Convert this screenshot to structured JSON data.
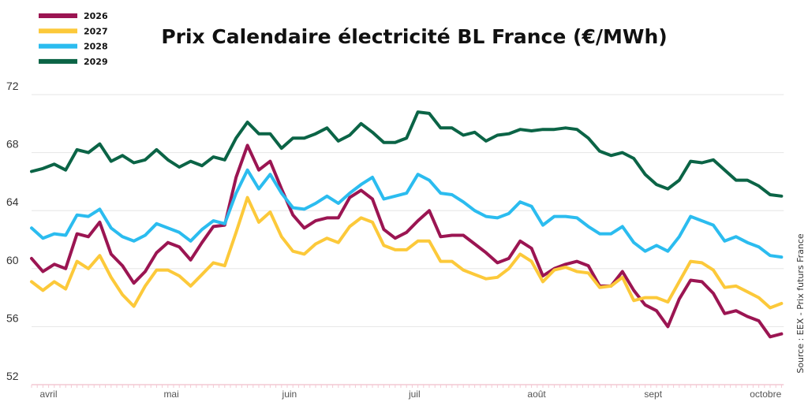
{
  "chart_data": {
    "type": "line",
    "title": "Prix Calendaire électricité BL France (€/MWh)",
    "source": "Source : EEX - Prix futurs France",
    "xlabel": "",
    "ylabel": "",
    "x_unit": "trading day index",
    "xlim": [
      0,
      132.4
    ],
    "ylim": [
      52,
      72
    ],
    "yticks": [
      52,
      56,
      60,
      64,
      68,
      72
    ],
    "grid": true,
    "legend_position": "top-left",
    "x_tick_labels": [
      {
        "label": "avril",
        "x": 1.6
      },
      {
        "label": "mai",
        "x": 24.6
      },
      {
        "label": "juin",
        "x": 45.4
      },
      {
        "label": "juil",
        "x": 67.4
      },
      {
        "label": "août",
        "x": 88.9
      },
      {
        "label": "sept",
        "x": 109.4
      },
      {
        "label": "octobre",
        "x": 129.2
      }
    ],
    "x_step": 2,
    "series": [
      {
        "name": "2026",
        "color": "#9b1552",
        "values": [
          60.7,
          59.8,
          60.3,
          60.0,
          62.4,
          62.2,
          63.2,
          61.0,
          60.2,
          59.0,
          59.8,
          61.1,
          61.8,
          61.5,
          60.6,
          61.8,
          62.9,
          63.0,
          66.3,
          68.5,
          66.8,
          67.4,
          65.5,
          63.7,
          62.8,
          63.3,
          63.5,
          63.5,
          64.9,
          65.4,
          64.8,
          62.7,
          62.1,
          62.5,
          63.3,
          64.0,
          62.2,
          62.3,
          62.3,
          61.7,
          61.1,
          60.4,
          60.7,
          61.9,
          61.4,
          59.5,
          60.0,
          60.3,
          60.5,
          60.2,
          58.8,
          58.8,
          59.8,
          58.5,
          57.5,
          57.1,
          56.0,
          57.9,
          59.2,
          59.1,
          58.3,
          56.9,
          57.1,
          56.7,
          56.4,
          55.3,
          55.5
        ]
      },
      {
        "name": "2027",
        "color": "#fcc93a",
        "values": [
          59.1,
          58.5,
          59.1,
          58.6,
          60.5,
          60.0,
          60.9,
          59.4,
          58.2,
          57.4,
          58.8,
          59.9,
          59.9,
          59.5,
          58.8,
          59.6,
          60.4,
          60.2,
          62.5,
          64.9,
          63.2,
          63.9,
          62.2,
          61.2,
          61.0,
          61.7,
          62.1,
          61.8,
          62.9,
          63.5,
          63.2,
          61.6,
          61.3,
          61.3,
          61.9,
          61.9,
          60.5,
          60.5,
          59.9,
          59.6,
          59.3,
          59.4,
          60.0,
          61.0,
          60.5,
          59.1,
          59.9,
          60.1,
          59.8,
          59.7,
          58.7,
          58.8,
          59.4,
          57.8,
          58.0,
          58.0,
          57.7,
          59.1,
          60.5,
          60.4,
          59.9,
          58.7,
          58.8,
          58.4,
          58.0,
          57.3,
          57.6
        ]
      },
      {
        "name": "2028",
        "color": "#2bbcef",
        "values": [
          62.8,
          62.1,
          62.4,
          62.3,
          63.7,
          63.6,
          64.1,
          62.8,
          62.2,
          61.9,
          62.3,
          63.1,
          62.8,
          62.5,
          61.9,
          62.7,
          63.3,
          63.1,
          65.2,
          66.8,
          65.5,
          66.5,
          65.2,
          64.2,
          64.1,
          64.5,
          65.0,
          64.5,
          65.2,
          65.8,
          66.3,
          64.8,
          65.0,
          65.2,
          66.5,
          66.1,
          65.2,
          65.1,
          64.6,
          64.0,
          63.6,
          63.5,
          63.8,
          64.6,
          64.3,
          63.0,
          63.6,
          63.6,
          63.5,
          62.9,
          62.4,
          62.4,
          62.9,
          61.8,
          61.2,
          61.6,
          61.2,
          62.2,
          63.6,
          63.3,
          63.0,
          61.9,
          62.2,
          61.8,
          61.5,
          60.9,
          60.8
        ]
      },
      {
        "name": "2029",
        "color": "#0b6446",
        "values": [
          66.7,
          66.9,
          67.2,
          66.8,
          68.2,
          68.0,
          68.6,
          67.4,
          67.8,
          67.3,
          67.5,
          68.2,
          67.5,
          67.0,
          67.4,
          67.1,
          67.7,
          67.5,
          69.0,
          70.1,
          69.3,
          69.3,
          68.3,
          69.0,
          69.0,
          69.3,
          69.7,
          68.8,
          69.2,
          70.0,
          69.4,
          68.7,
          68.7,
          69.0,
          70.8,
          70.7,
          69.7,
          69.7,
          69.2,
          69.4,
          68.8,
          69.2,
          69.3,
          69.6,
          69.5,
          69.6,
          69.6,
          69.7,
          69.6,
          69.0,
          68.1,
          67.8,
          68.0,
          67.6,
          66.5,
          65.8,
          65.5,
          66.1,
          67.4,
          67.3,
          67.5,
          66.8,
          66.1,
          66.1,
          65.7,
          65.1,
          65.0
        ]
      }
    ]
  }
}
